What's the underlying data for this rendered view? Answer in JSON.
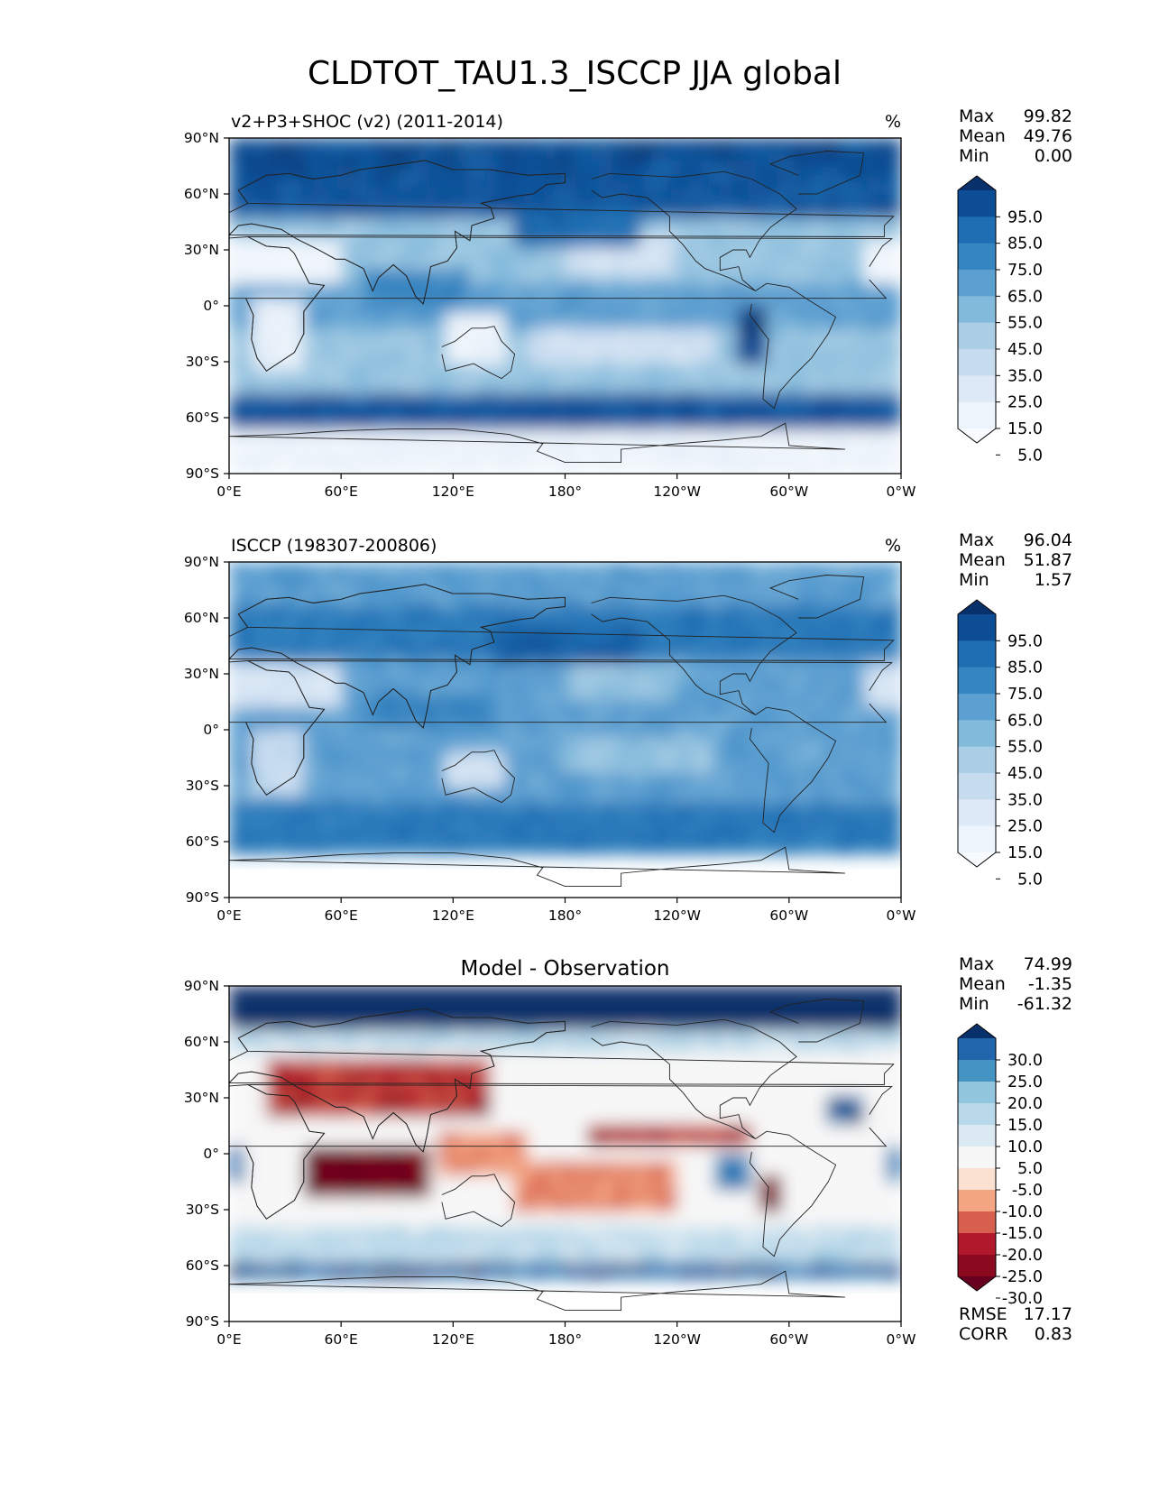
{
  "title": "CLDTOT_TAU1.3_ISCCP JJA global",
  "axes": {
    "x_ticks": [
      "0°E",
      "60°E",
      "120°E",
      "180°",
      "120°W",
      "60°W",
      "0°W"
    ],
    "y_ticks": [
      "90°N",
      "60°N",
      "30°N",
      "0°",
      "30°S",
      "60°S",
      "90°S"
    ]
  },
  "chart_data": [
    {
      "type": "heatmap",
      "title": "v2+P3+SHOC (v2) (2011-2014)",
      "units": "%",
      "stats": {
        "max_label": "Max",
        "max": "99.82",
        "mean_label": "Mean",
        "mean": "49.76",
        "min_label": "Min",
        "min": "0.00"
      },
      "colorbar_levels": [
        "95.0",
        "85.0",
        "75.0",
        "65.0",
        "55.0",
        "45.0",
        "35.0",
        "25.0",
        "15.0",
        "5.0"
      ],
      "colorbar_colors": [
        "#08306b",
        "#0c4d95",
        "#1f6db2",
        "#3585c1",
        "#5c9fd1",
        "#82badb",
        "#a9cee5",
        "#c7dbef",
        "#dde9f6",
        "#eef4fb",
        "#f7fbff"
      ],
      "xlim": [
        0,
        360
      ],
      "ylim": [
        -90,
        90
      ]
    },
    {
      "type": "heatmap",
      "title": "ISCCP (198307-200806)",
      "units": "%",
      "stats": {
        "max_label": "Max",
        "max": "96.04",
        "mean_label": "Mean",
        "mean": "51.87",
        "min_label": "Min",
        "min": "1.57"
      },
      "colorbar_levels": [
        "95.0",
        "85.0",
        "75.0",
        "65.0",
        "55.0",
        "45.0",
        "35.0",
        "25.0",
        "15.0",
        "5.0"
      ],
      "colorbar_colors": [
        "#08306b",
        "#0c4d95",
        "#1f6db2",
        "#3585c1",
        "#5c9fd1",
        "#82badb",
        "#a9cee5",
        "#c7dbef",
        "#dde9f6",
        "#eef4fb",
        "#f7fbff"
      ],
      "xlim": [
        0,
        360
      ],
      "ylim": [
        -90,
        90
      ]
    },
    {
      "type": "heatmap",
      "title": "Model - Observation",
      "stats": {
        "max_label": "Max",
        "max": "74.99",
        "mean_label": "Mean",
        "mean": "-1.35",
        "min_label": "Min",
        "min": "-61.32"
      },
      "colorbar_levels": [
        "30.0",
        "25.0",
        "20.0",
        "15.0",
        "10.0",
        "5.0",
        "-5.0",
        "-10.0",
        "-15.0",
        "-20.0",
        "-25.0",
        "-30.0"
      ],
      "colorbar_colors": [
        "#08306b",
        "#2166ac",
        "#4393c3",
        "#92c5de",
        "#b9d9ea",
        "#dbe9f2",
        "#f7f7f7",
        "#fbe1d2",
        "#f4a582",
        "#d6604d",
        "#b2182b",
        "#8b0a1f",
        "#67001f"
      ],
      "metrics": {
        "rmse_label": "RMSE",
        "rmse": "17.17",
        "corr_label": "CORR",
        "corr": "0.83"
      },
      "xlim": [
        0,
        360
      ],
      "ylim": [
        -90,
        90
      ]
    }
  ]
}
